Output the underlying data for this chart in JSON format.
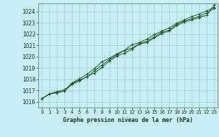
{
  "title": "Graphe pression niveau de la mer (hPa)",
  "background_color": "#c8eef5",
  "grid_color": "#9ecece",
  "line_color": "#1a5c1a",
  "marker_color": "#1a5c1a",
  "xlim": [
    -0.5,
    23.5
  ],
  "ylim": [
    1015.5,
    1024.7
  ],
  "xticks": [
    0,
    1,
    2,
    3,
    4,
    5,
    6,
    7,
    8,
    9,
    10,
    11,
    12,
    13,
    14,
    15,
    16,
    17,
    18,
    19,
    20,
    21,
    22,
    23
  ],
  "yticks": [
    1016,
    1017,
    1018,
    1019,
    1020,
    1021,
    1022,
    1023,
    1024
  ],
  "line1_x": [
    0,
    1,
    2,
    3,
    4,
    5,
    6,
    7,
    8,
    9,
    10,
    11,
    12,
    13,
    14,
    15,
    16,
    17,
    18,
    19,
    20,
    21,
    22,
    23
  ],
  "line1_y": [
    1016.3,
    1016.7,
    1016.8,
    1016.95,
    1017.55,
    1017.85,
    1018.25,
    1018.55,
    1019.05,
    1019.6,
    1020.05,
    1020.3,
    1020.65,
    1021.1,
    1021.25,
    1021.65,
    1022.05,
    1022.25,
    1022.75,
    1023.05,
    1023.25,
    1023.45,
    1023.65,
    1024.55
  ],
  "line2_x": [
    0,
    1,
    2,
    3,
    4,
    5,
    6,
    7,
    8,
    9,
    10,
    11,
    12,
    13,
    14,
    15,
    16,
    17,
    18,
    19,
    20,
    21,
    22,
    23
  ],
  "line2_y": [
    1016.3,
    1016.7,
    1016.9,
    1017.05,
    1017.6,
    1017.95,
    1018.2,
    1018.75,
    1019.25,
    1019.75,
    1020.15,
    1020.55,
    1020.75,
    1021.15,
    1021.35,
    1021.75,
    1022.15,
    1022.35,
    1022.85,
    1023.15,
    1023.35,
    1023.55,
    1023.85,
    1024.25
  ],
  "line3_x": [
    0,
    1,
    2,
    3,
    4,
    5,
    6,
    7,
    8,
    9,
    10,
    11,
    12,
    13,
    14,
    15,
    16,
    17,
    18,
    19,
    20,
    21,
    22,
    23
  ],
  "line3_y": [
    1016.3,
    1016.7,
    1016.9,
    1017.05,
    1017.65,
    1018.05,
    1018.45,
    1018.95,
    1019.55,
    1019.85,
    1020.25,
    1020.55,
    1021.05,
    1021.25,
    1021.55,
    1021.95,
    1022.25,
    1022.55,
    1022.95,
    1023.25,
    1023.55,
    1023.75,
    1024.05,
    1024.35
  ]
}
